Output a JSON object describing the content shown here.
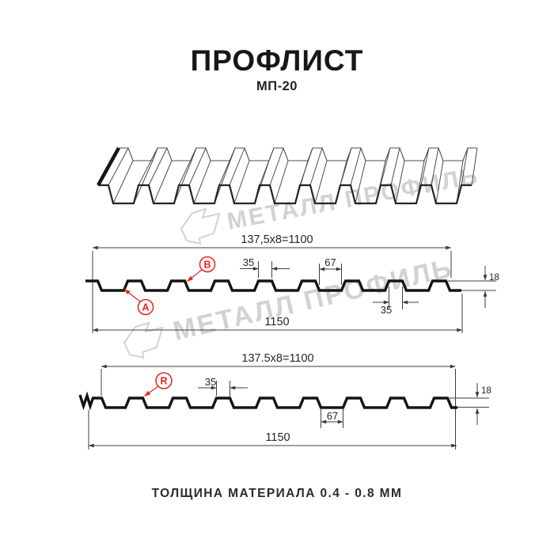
{
  "page": {
    "title": "ПРОФЛИСТ",
    "subtitle": "МП-20",
    "footer": "ТОЛЩИНА МАТЕРИАЛА 0.4 - 0.8 ММ"
  },
  "watermark": {
    "brand": "МЕТАЛЛ ПРОФИЛЬ"
  },
  "drawing1": {
    "working_width": "137,5x8=1100",
    "overall_width": "1150",
    "rib_top_width": "35",
    "valley_width": "67",
    "height": "18",
    "rib_bottom_width": "35",
    "point_a": "А",
    "point_b": "В"
  },
  "drawing2": {
    "working_width": "137.5x8=1100",
    "overall_width": "1150",
    "rib_top_width": "35",
    "valley_width": "67",
    "height": "18",
    "point_r": "R"
  },
  "colors": {
    "accent_red": "#e8231f",
    "line_dark": "#141414",
    "line_thin": "#3f3f3f",
    "watermark": "#d2d2d2"
  }
}
